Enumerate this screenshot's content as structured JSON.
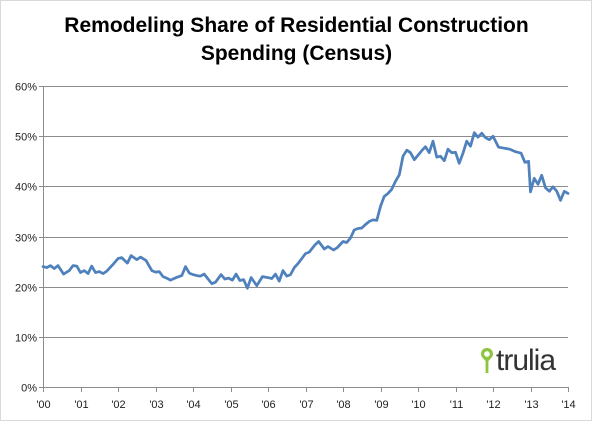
{
  "title_lines": [
    "Remodeling Share of Residential Construction",
    "Spending (Census)"
  ],
  "watermark": {
    "text": "trulia",
    "icon": "location-pin-icon",
    "icon_color": "#8cc63f"
  },
  "colors": {
    "line": "#4f81bd",
    "grid": "#8c8c8c",
    "axis": "#8c8c8c"
  },
  "chart_data": {
    "type": "line",
    "title": "Remodeling Share of Residential Construction Spending (Census)",
    "xlabel": "",
    "ylabel": "",
    "xlim": [
      2000,
      2014
    ],
    "ylim": [
      0,
      0.6
    ],
    "y_ticks": [
      0,
      0.1,
      0.2,
      0.3,
      0.4,
      0.5,
      0.6
    ],
    "y_tick_labels": [
      "0%",
      "10%",
      "20%",
      "30%",
      "40%",
      "50%",
      "60%"
    ],
    "x_ticks": [
      2000,
      2001,
      2002,
      2003,
      2004,
      2005,
      2006,
      2007,
      2008,
      2009,
      2010,
      2011,
      2012,
      2013,
      2014
    ],
    "x_tick_labels": [
      "'00",
      "'01",
      "'02",
      "'03",
      "'04",
      "'05",
      "'06",
      "'07",
      "'08",
      "'09",
      "'10",
      "'11",
      "'12",
      "'13",
      "'14"
    ],
    "grid": "horizontal",
    "legend": "none",
    "series": [
      {
        "x": [
          2000.0,
          2000.1,
          2000.2,
          2000.3,
          2000.4,
          2000.55,
          2000.7,
          2000.8,
          2000.9,
          2001.0,
          2001.1,
          2001.2,
          2001.3,
          2001.4,
          2001.5,
          2001.6,
          2001.7,
          2001.85,
          2002.0,
          2002.1,
          2002.25,
          2002.35,
          2002.5,
          2002.6,
          2002.75,
          2002.9,
          2003.0,
          2003.1,
          2003.2,
          2003.3,
          2003.4,
          2003.55,
          2003.7,
          2003.8,
          2003.9,
          2004.0,
          2004.1,
          2004.2,
          2004.3,
          2004.5,
          2004.6,
          2004.75,
          2004.85,
          2004.95,
          2005.05,
          2005.15,
          2005.25,
          2005.35,
          2005.45,
          2005.55,
          2005.7,
          2005.85,
          2006.0,
          2006.1,
          2006.2,
          2006.3,
          2006.4,
          2006.5,
          2006.6,
          2006.7,
          2006.8,
          2006.9,
          2007.0,
          2007.1,
          2007.25,
          2007.35,
          2007.5,
          2007.6,
          2007.75,
          2007.85,
          2008.0,
          2008.1,
          2008.2,
          2008.3,
          2008.4,
          2008.5,
          2008.6,
          2008.7,
          2008.8,
          2008.9,
          2009.0,
          2009.1,
          2009.2,
          2009.3,
          2009.4,
          2009.5,
          2009.6,
          2009.7,
          2009.8,
          2009.9,
          2010.0,
          2010.1,
          2010.2,
          2010.3,
          2010.4,
          2010.5,
          2010.6,
          2010.7,
          2010.8,
          2010.9,
          2011.0,
          2011.1,
          2011.2,
          2011.3,
          2011.4,
          2011.5,
          2011.6,
          2011.7,
          2011.8,
          2011.9,
          2012.0,
          2012.15,
          2012.3,
          2012.45,
          2012.6,
          2012.75,
          2012.85,
          2012.95,
          2013.0,
          2013.1,
          2013.2,
          2013.3,
          2013.4,
          2013.5,
          2013.6,
          2013.7,
          2013.8,
          2013.9,
          2014.0
        ],
        "y": [
          0.24,
          0.238,
          0.242,
          0.236,
          0.242,
          0.225,
          0.232,
          0.242,
          0.241,
          0.228,
          0.232,
          0.226,
          0.241,
          0.228,
          0.23,
          0.226,
          0.231,
          0.243,
          0.256,
          0.258,
          0.247,
          0.262,
          0.254,
          0.259,
          0.252,
          0.232,
          0.229,
          0.23,
          0.22,
          0.217,
          0.213,
          0.218,
          0.222,
          0.24,
          0.227,
          0.224,
          0.222,
          0.221,
          0.225,
          0.206,
          0.209,
          0.224,
          0.215,
          0.217,
          0.213,
          0.225,
          0.212,
          0.214,
          0.197,
          0.218,
          0.202,
          0.22,
          0.218,
          0.216,
          0.225,
          0.211,
          0.232,
          0.221,
          0.224,
          0.238,
          0.246,
          0.256,
          0.266,
          0.269,
          0.283,
          0.29,
          0.275,
          0.28,
          0.273,
          0.278,
          0.29,
          0.288,
          0.297,
          0.313,
          0.316,
          0.317,
          0.324,
          0.33,
          0.333,
          0.332,
          0.36,
          0.38,
          0.386,
          0.394,
          0.41,
          0.423,
          0.46,
          0.472,
          0.467,
          0.453,
          0.462,
          0.471,
          0.479,
          0.467,
          0.49,
          0.458,
          0.46,
          0.451,
          0.474,
          0.467,
          0.468,
          0.446,
          0.466,
          0.49,
          0.48,
          0.507,
          0.498,
          0.506,
          0.497,
          0.493,
          0.5,
          0.478,
          0.476,
          0.474,
          0.469,
          0.466,
          0.448,
          0.45,
          0.389,
          0.416,
          0.404,
          0.422,
          0.397,
          0.39,
          0.399,
          0.39,
          0.372,
          0.39,
          0.386
        ]
      }
    ]
  }
}
